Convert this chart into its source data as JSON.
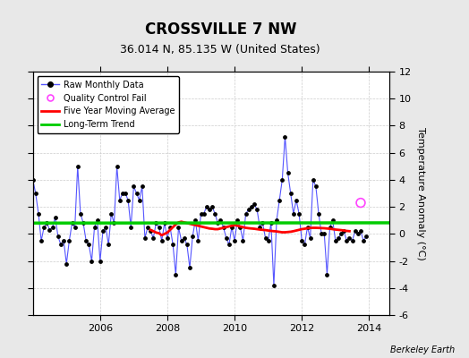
{
  "title": "CROSSVILLE 7 NW",
  "subtitle": "36.014 N, 85.135 W (United States)",
  "ylabel": "Temperature Anomaly (°C)",
  "credit": "Berkeley Earth",
  "ylim": [
    -6,
    12
  ],
  "yticks": [
    -6,
    -4,
    -2,
    0,
    2,
    4,
    6,
    8,
    10,
    12
  ],
  "xlim": [
    2004.0,
    2014.6
  ],
  "xticks": [
    2006,
    2008,
    2010,
    2012,
    2014
  ],
  "background_color": "#e8e8e8",
  "plot_bg_color": "#ffffff",
  "start_year": 2004.0,
  "end_year": 2014.5,
  "raw_data": [
    4.0,
    3.0,
    1.5,
    -0.5,
    0.5,
    0.8,
    0.3,
    0.5,
    1.2,
    -0.2,
    -0.8,
    -0.5,
    -2.2,
    -0.5,
    0.8,
    0.5,
    5.0,
    1.5,
    0.8,
    -0.5,
    -0.8,
    -2.0,
    0.5,
    1.0,
    -2.0,
    0.2,
    0.5,
    -0.8,
    1.5,
    0.8,
    5.0,
    2.5,
    3.0,
    3.0,
    2.5,
    0.5,
    3.5,
    3.0,
    2.5,
    3.5,
    -0.3,
    0.5,
    0.2,
    -0.3,
    0.8,
    0.5,
    -0.5,
    0.8,
    -0.3,
    0.5,
    -0.8,
    -3.0,
    0.5,
    -0.5,
    -0.3,
    -0.8,
    -2.5,
    -0.2,
    1.0,
    -0.5,
    1.5,
    1.5,
    2.0,
    1.8,
    2.0,
    1.5,
    0.8,
    1.0,
    0.5,
    -0.3,
    -0.8,
    0.5,
    -0.5,
    1.0,
    0.5,
    -0.5,
    1.5,
    1.8,
    2.0,
    2.2,
    1.8,
    0.5,
    0.8,
    -0.3,
    -0.5,
    0.8,
    -3.8,
    1.0,
    2.5,
    4.0,
    7.2,
    4.5,
    3.0,
    1.5,
    2.5,
    1.5,
    -0.5,
    -0.8,
    0.5,
    -0.3,
    4.0,
    3.5,
    1.5,
    0.0,
    0.0,
    -3.0,
    0.5,
    1.0,
    -0.5,
    -0.3,
    0.0,
    0.2,
    -0.5,
    -0.3,
    -0.5,
    0.2,
    0.0,
    0.2,
    -0.5,
    -0.2
  ],
  "qc_fail_times": [
    2013.75
  ],
  "qc_fail_values": [
    2.3
  ],
  "moving_avg_start": 2007.5,
  "moving_avg_data": [
    0.3,
    0.2,
    0.1,
    0.05,
    -0.1,
    0.0,
    0.1,
    0.3,
    0.5,
    0.7,
    0.85,
    0.9,
    0.85,
    0.8,
    0.75,
    0.7,
    0.65,
    0.6,
    0.55,
    0.5,
    0.45,
    0.4,
    0.38,
    0.35,
    0.35,
    0.4,
    0.45,
    0.5,
    0.55,
    0.6,
    0.65,
    0.6,
    0.55,
    0.5,
    0.45,
    0.42,
    0.4,
    0.38,
    0.35,
    0.32,
    0.3,
    0.28,
    0.25,
    0.22,
    0.2,
    0.18,
    0.15,
    0.12,
    0.12,
    0.14,
    0.16,
    0.2,
    0.25,
    0.3,
    0.35,
    0.38,
    0.42,
    0.44,
    0.45,
    0.45,
    0.44,
    0.43,
    0.42,
    0.4,
    0.38,
    0.35,
    0.32,
    0.3,
    0.28,
    0.25,
    0.22,
    0.2
  ],
  "trend_y": [
    0.8,
    0.82
  ],
  "trend_x": [
    2004.0,
    2014.6
  ],
  "raw_line_color": "#5555ff",
  "raw_marker_color": "#000000",
  "moving_avg_color": "#ff0000",
  "trend_color": "#00cc00",
  "qc_color": "#ff44ff",
  "grid_color": "#cccccc",
  "title_fontsize": 12,
  "subtitle_fontsize": 9,
  "tick_fontsize": 8,
  "ylabel_fontsize": 8
}
